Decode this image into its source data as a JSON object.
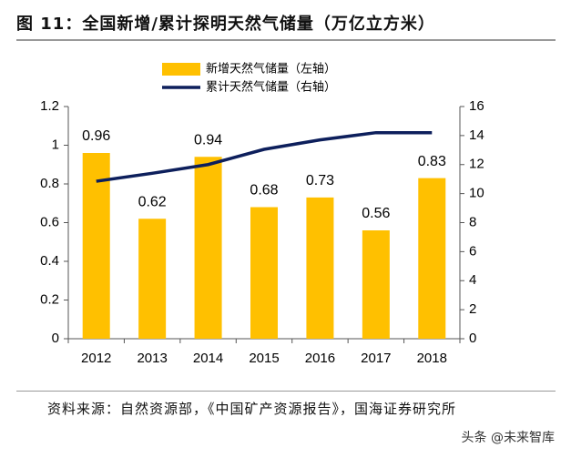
{
  "chart_data": {
    "type": "bar-line",
    "title": "图 11：全国新增/累计探明天然气储量（万亿立方米）",
    "categories": [
      "2012",
      "2013",
      "2014",
      "2015",
      "2016",
      "2017",
      "2018"
    ],
    "series": [
      {
        "name": "新增天然气储量（左轴）",
        "type": "bar",
        "color": "#ffc000",
        "values": [
          0.96,
          0.62,
          0.94,
          0.68,
          0.73,
          0.56,
          0.83
        ]
      },
      {
        "name": "累计天然气储量（右轴）",
        "type": "line",
        "axis": "y2",
        "color": "#0d1f5c",
        "values": [
          10.85,
          11.4,
          12.0,
          13.05,
          13.7,
          14.2,
          14.2
        ]
      }
    ],
    "ylim": [
      0,
      1.2
    ],
    "yticks": [
      0,
      0.2,
      0.4,
      0.6,
      0.8,
      1,
      1.2
    ],
    "y2lim": [
      0,
      16
    ],
    "y2ticks": [
      0,
      2,
      4,
      6,
      8,
      10,
      12,
      14,
      16
    ],
    "grid": false
  },
  "source": "资料来源：自然资源部，《中国矿产资源报告》，国海证券研究所",
  "watermark": "头条 @未来智库"
}
